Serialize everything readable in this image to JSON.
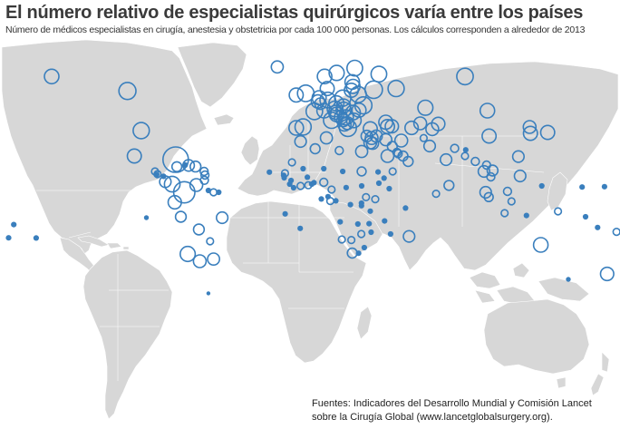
{
  "header": {
    "title": "El número relativo de especialistas quirúrgicos varía entre los países",
    "subtitle": "Número de médicos especialistas en cirugía, anestesia y obstetricia por cada 100 000 personas. Los cálculos corresponden a alrededor de 2013"
  },
  "source": {
    "line1": "Fuentes: Indicadores del Desarrollo Mundial y Comisión Lancet",
    "line2": "sobre la Cirugía Global (www.lancetglobalsurgery.org)."
  },
  "colors": {
    "land": "#d7d7d7",
    "marker": "#3a7fbd",
    "background": "#ffffff",
    "title": "#3a3a3a"
  },
  "chart_data": {
    "type": "map",
    "projection": "world",
    "marker_encoding": "circle area proportional to specialists per 100 000 people",
    "points": [
      {
        "lon": -150,
        "lat": 61,
        "value": 1.3
      },
      {
        "lon": -106,
        "lat": 55,
        "value": 1.8
      },
      {
        "lon": -98,
        "lat": 38,
        "value": 1.6
      },
      {
        "lon": -102,
        "lat": 24,
        "value": 1.2
      },
      {
        "lon": -90,
        "lat": 15.5,
        "value": 0.3
      },
      {
        "lon": -88.5,
        "lat": 14,
        "value": 0.3
      },
      {
        "lon": -89,
        "lat": 13.8,
        "value": 0.2
      },
      {
        "lon": -85,
        "lat": 12.8,
        "value": 0.2
      },
      {
        "lon": -84,
        "lat": 9.8,
        "value": 0.8
      },
      {
        "lon": -80,
        "lat": 8.5,
        "value": 1.5
      },
      {
        "lon": -78,
        "lat": 22,
        "value": 4.0
      },
      {
        "lon": -77.3,
        "lat": 18.1,
        "value": 0.6
      },
      {
        "lon": -72.5,
        "lat": 19,
        "value": 0.2
      },
      {
        "lon": -70.5,
        "lat": 18.8,
        "value": 0.8
      },
      {
        "lon": -66.5,
        "lat": 18.2,
        "value": 0.7
      },
      {
        "lon": -61.5,
        "lat": 15.5,
        "value": 0.4
      },
      {
        "lon": -61,
        "lat": 13.5,
        "value": 0.4
      },
      {
        "lon": -61.3,
        "lat": 10.6,
        "value": 0.4
      },
      {
        "lon": -66,
        "lat": 8,
        "value": 1.0
      },
      {
        "lon": -73,
        "lat": 4,
        "value": 2.8
      },
      {
        "lon": -59,
        "lat": 5,
        "value": 0.2
      },
      {
        "lon": -56,
        "lat": 4,
        "value": 0.3
      },
      {
        "lon": -53,
        "lat": 4,
        "value": 0.2
      },
      {
        "lon": -78.5,
        "lat": -1.5,
        "value": 1.1
      },
      {
        "lon": -75,
        "lat": -9.5,
        "value": 0.7
      },
      {
        "lon": -51,
        "lat": -10,
        "value": 0.8
      },
      {
        "lon": -64.5,
        "lat": -16.5,
        "value": 0.7
      },
      {
        "lon": -58,
        "lat": -23,
        "value": 0.3
      },
      {
        "lon": -71,
        "lat": -30,
        "value": 1.4
      },
      {
        "lon": -64,
        "lat": -34,
        "value": 1.0
      },
      {
        "lon": -56,
        "lat": -32.8,
        "value": 0.9
      },
      {
        "lon": -59,
        "lat": -51.7,
        "value": 0.1
      },
      {
        "lon": -19,
        "lat": 65,
        "value": 0.9
      },
      {
        "lon": 8.5,
        "lat": 61,
        "value": 1.3
      },
      {
        "lon": 15.5,
        "lat": 62.5,
        "value": 1.4
      },
      {
        "lon": 26,
        "lat": 64.5,
        "value": 1.5
      },
      {
        "lon": 24.5,
        "lat": 58.7,
        "value": 1.3
      },
      {
        "lon": 25,
        "lat": 56.9,
        "value": 1.2
      },
      {
        "lon": 24,
        "lat": 55.3,
        "value": 1.2
      },
      {
        "lon": -2.5,
        "lat": 54,
        "value": 1.7
      },
      {
        "lon": -8,
        "lat": 53.3,
        "value": 1.2
      },
      {
        "lon": 5.3,
        "lat": 52.2,
        "value": 1.2
      },
      {
        "lon": 4.6,
        "lat": 50.6,
        "value": 1.1
      },
      {
        "lon": 6.1,
        "lat": 49.7,
        "value": 0.8
      },
      {
        "lon": 2.5,
        "lat": 46.5,
        "value": 1.7
      },
      {
        "lon": 10.3,
        "lat": 51.2,
        "value": 1.5
      },
      {
        "lon": 10,
        "lat": 56,
        "value": 1.2
      },
      {
        "lon": 19,
        "lat": 52,
        "value": 1.6
      },
      {
        "lon": 15.3,
        "lat": 49.8,
        "value": 1.4
      },
      {
        "lon": 19.5,
        "lat": 48.7,
        "value": 1.2
      },
      {
        "lon": 14.5,
        "lat": 47.5,
        "value": 1.5
      },
      {
        "lon": 8.2,
        "lat": 46.8,
        "value": 1.3
      },
      {
        "lon": 19.5,
        "lat": 47.2,
        "value": 1.4
      },
      {
        "lon": 25,
        "lat": 46,
        "value": 1.3
      },
      {
        "lon": 28.5,
        "lat": 47,
        "value": 1.2
      },
      {
        "lon": 28,
        "lat": 53.5,
        "value": 1.6
      },
      {
        "lon": 31,
        "lat": 49,
        "value": 1.8
      },
      {
        "lon": 37,
        "lat": 55.5,
        "value": 1.9
      },
      {
        "lon": 40,
        "lat": 62,
        "value": 1.5
      },
      {
        "lon": 50,
        "lat": 56,
        "value": 1.6
      },
      {
        "lon": 90,
        "lat": 61,
        "value": 1.7
      },
      {
        "lon": 14.9,
        "lat": 46.1,
        "value": 1.2
      },
      {
        "lon": 15.5,
        "lat": 45.2,
        "value": 1.3
      },
      {
        "lon": 18,
        "lat": 44,
        "value": 1.1
      },
      {
        "lon": 20.8,
        "lat": 44,
        "value": 1.4
      },
      {
        "lon": 19.3,
        "lat": 42.8,
        "value": 1.0
      },
      {
        "lon": 20,
        "lat": 41.1,
        "value": 1.1
      },
      {
        "lon": 21.7,
        "lat": 41.6,
        "value": 1.0
      },
      {
        "lon": 25.5,
        "lat": 42.7,
        "value": 1.3
      },
      {
        "lon": 22,
        "lat": 39.5,
        "value": 1.8
      },
      {
        "lon": 12.5,
        "lat": 42.8,
        "value": 1.6
      },
      {
        "lon": -4,
        "lat": 40,
        "value": 1.6
      },
      {
        "lon": -8,
        "lat": 39.5,
        "value": 1.3
      },
      {
        "lon": 35,
        "lat": 39,
        "value": 1.2
      },
      {
        "lon": 33,
        "lat": 35,
        "value": 0.8
      },
      {
        "lon": 35.8,
        "lat": 33.9,
        "value": 1.0
      },
      {
        "lon": 38.5,
        "lat": 35,
        "value": 0.9
      },
      {
        "lon": 35,
        "lat": 31.5,
        "value": 1.0
      },
      {
        "lon": 36.3,
        "lat": 31,
        "value": 0.9
      },
      {
        "lon": 44,
        "lat": 42,
        "value": 1.2
      },
      {
        "lon": 45,
        "lat": 40.2,
        "value": 1.2
      },
      {
        "lon": 47.5,
        "lat": 40.3,
        "value": 1.1
      },
      {
        "lon": 67,
        "lat": 48,
        "value": 1.4
      },
      {
        "lon": 59,
        "lat": 39.5,
        "value": 1.1
      },
      {
        "lon": 64,
        "lat": 41.5,
        "value": 1.0
      },
      {
        "lon": 74.5,
        "lat": 41.3,
        "value": 1.1
      },
      {
        "lon": 71,
        "lat": 38.8,
        "value": 1.0
      },
      {
        "lon": 53,
        "lat": 32.5,
        "value": 1.0
      },
      {
        "lon": 44,
        "lat": 33,
        "value": 0.9
      },
      {
        "lon": 45,
        "lat": 24,
        "value": 1.0
      },
      {
        "lon": 47.8,
        "lat": 29.3,
        "value": 0.6
      },
      {
        "lon": 50.5,
        "lat": 26,
        "value": 0.4
      },
      {
        "lon": 51.2,
        "lat": 25.3,
        "value": 0.4
      },
      {
        "lon": 54,
        "lat": 24,
        "value": 0.6
      },
      {
        "lon": 57,
        "lat": 21,
        "value": 0.6
      },
      {
        "lon": 48,
        "lat": 15.5,
        "value": 0.3
      },
      {
        "lon": 66,
        "lat": 33.9,
        "value": 0.3
      },
      {
        "lon": 69.5,
        "lat": 29.5,
        "value": 0.8
      },
      {
        "lon": 79,
        "lat": 22,
        "value": 0.8
      },
      {
        "lon": 84,
        "lat": 28.2,
        "value": 0.4
      },
      {
        "lon": 90.4,
        "lat": 27.4,
        "value": 0.2
      },
      {
        "lon": 90,
        "lat": 24,
        "value": 0.3
      },
      {
        "lon": 80.7,
        "lat": 7.8,
        "value": 0.6
      },
      {
        "lon": 73.2,
        "lat": 3.2,
        "value": 0.3
      },
      {
        "lon": 103,
        "lat": 46.8,
        "value": 1.3
      },
      {
        "lon": 104,
        "lat": 35,
        "value": 1.2
      },
      {
        "lon": 127.5,
        "lat": 40,
        "value": 1.0
      },
      {
        "lon": 128,
        "lat": 36.5,
        "value": 1.2
      },
      {
        "lon": 138,
        "lat": 37,
        "value": 1.2
      },
      {
        "lon": 121,
        "lat": 23.7,
        "value": 0.8
      },
      {
        "lon": 96,
        "lat": 21,
        "value": 0.4
      },
      {
        "lon": 101,
        "lat": 15.5,
        "value": 0.8
      },
      {
        "lon": 102.5,
        "lat": 19,
        "value": 0.4
      },
      {
        "lon": 105,
        "lat": 12.5,
        "value": 0.4
      },
      {
        "lon": 106,
        "lat": 16,
        "value": 0.7
      },
      {
        "lon": 122,
        "lat": 13,
        "value": 0.8
      },
      {
        "lon": 102,
        "lat": 4,
        "value": 0.8
      },
      {
        "lon": 103.8,
        "lat": 1.35,
        "value": 0.5
      },
      {
        "lon": 114.7,
        "lat": 4.5,
        "value": 0.4
      },
      {
        "lon": 117,
        "lat": -1,
        "value": 0.3
      },
      {
        "lon": 113,
        "lat": -7.5,
        "value": 0.3
      },
      {
        "lon": 125.7,
        "lat": -8.8,
        "value": 0.2
      },
      {
        "lon": 144,
        "lat": -6.5,
        "value": 0.3
      },
      {
        "lon": 134.6,
        "lat": 7.5,
        "value": 0.2
      },
      {
        "lon": 158,
        "lat": 6.9,
        "value": 0.2
      },
      {
        "lon": 171,
        "lat": 7.1,
        "value": 0.2
      },
      {
        "lon": 160,
        "lat": -9.5,
        "value": 0.2
      },
      {
        "lon": 167,
        "lat": -15.4,
        "value": 0.2
      },
      {
        "lon": 178,
        "lat": -17.8,
        "value": 0.3
      },
      {
        "lon": 134,
        "lat": -25,
        "value": 1.3
      },
      {
        "lon": 172.5,
        "lat": -41,
        "value": 1.1
      },
      {
        "lon": -172,
        "lat": -13.8,
        "value": 0.2
      },
      {
        "lon": -175,
        "lat": -21.1,
        "value": 0.2
      },
      {
        "lon": -159,
        "lat": -21.2,
        "value": 0.2
      },
      {
        "lon": -5.5,
        "lat": 32,
        "value": 0.8
      },
      {
        "lon": 3,
        "lat": 28,
        "value": 0.6
      },
      {
        "lon": 9.5,
        "lat": 34,
        "value": 0.9
      },
      {
        "lon": 17,
        "lat": 27,
        "value": 0.4
      },
      {
        "lon": 30,
        "lat": 26.5,
        "value": 0.9
      },
      {
        "lon": 30,
        "lat": 15.5,
        "value": 0.5
      },
      {
        "lon": -10.5,
        "lat": 20.5,
        "value": 0.3
      },
      {
        "lon": -14.5,
        "lat": 14.5,
        "value": 0.3
      },
      {
        "lon": -15.3,
        "lat": 13.4,
        "value": 0.2
      },
      {
        "lon": -15,
        "lat": 12,
        "value": 0.2
      },
      {
        "lon": -11,
        "lat": 10.5,
        "value": 0.2
      },
      {
        "lon": -11.8,
        "lat": 8.5,
        "value": 0.2
      },
      {
        "lon": -9.5,
        "lat": 6.5,
        "value": 0.2
      },
      {
        "lon": -5.5,
        "lat": 7.5,
        "value": 0.3
      },
      {
        "lon": -4,
        "lat": 17,
        "value": 0.2
      },
      {
        "lon": -1.5,
        "lat": 12.3,
        "value": 0.2
      },
      {
        "lon": -1,
        "lat": 7.9,
        "value": 0.3
      },
      {
        "lon": 1,
        "lat": 8.5,
        "value": 0.2
      },
      {
        "lon": 2.3,
        "lat": 9.3,
        "value": 0.2
      },
      {
        "lon": 8,
        "lat": 17,
        "value": 0.2
      },
      {
        "lon": 8,
        "lat": 9.5,
        "value": 0.4
      },
      {
        "lon": 12.5,
        "lat": 5.5,
        "value": 0.3
      },
      {
        "lon": 19,
        "lat": 15.5,
        "value": 0.2
      },
      {
        "lon": 21,
        "lat": 6.6,
        "value": 0.2
      },
      {
        "lon": 30,
        "lat": 7.5,
        "value": 0.2
      },
      {
        "lon": 39.5,
        "lat": 15.2,
        "value": 0.2
      },
      {
        "lon": 40,
        "lat": 9,
        "value": 0.2
      },
      {
        "lon": 43,
        "lat": 11.8,
        "value": 0.2
      },
      {
        "lon": 46,
        "lat": 6,
        "value": 0.2
      },
      {
        "lon": 10.5,
        "lat": 1.6,
        "value": 0.2
      },
      {
        "lon": 11.8,
        "lat": -0.8,
        "value": 0.3
      },
      {
        "lon": 15,
        "lat": -0.7,
        "value": 0.2
      },
      {
        "lon": 23.5,
        "lat": -2.8,
        "value": 0.2
      },
      {
        "lon": 32.5,
        "lat": 1.3,
        "value": 0.3
      },
      {
        "lon": 37.9,
        "lat": 0.2,
        "value": 0.3
      },
      {
        "lon": 29.9,
        "lat": -2,
        "value": 0.2
      },
      {
        "lon": 29.9,
        "lat": -3.4,
        "value": 0.2
      },
      {
        "lon": 35,
        "lat": -6.4,
        "value": 0.2
      },
      {
        "lon": 17.5,
        "lat": -12.3,
        "value": 0.2
      },
      {
        "lon": 27.8,
        "lat": -13.5,
        "value": 0.2
      },
      {
        "lon": 34.3,
        "lat": -13.3,
        "value": 0.2
      },
      {
        "lon": 35.5,
        "lat": -18,
        "value": 0.2
      },
      {
        "lon": 29.8,
        "lat": -19,
        "value": 0.3
      },
      {
        "lon": 18.5,
        "lat": -22,
        "value": 0.3
      },
      {
        "lon": 24,
        "lat": -22.3,
        "value": 0.3
      },
      {
        "lon": 24.5,
        "lat": -29.5,
        "value": 0.6
      },
      {
        "lon": 31.5,
        "lat": -26.5,
        "value": 0.2
      },
      {
        "lon": 28.2,
        "lat": -29.6,
        "value": 0.2
      },
      {
        "lon": 46.8,
        "lat": -19,
        "value": 0.2
      },
      {
        "lon": 57.5,
        "lat": -20.3,
        "value": 0.8
      },
      {
        "lon": 55.5,
        "lat": -4.7,
        "value": 0.2
      },
      {
        "lon": 43.3,
        "lat": -11.8,
        "value": 0.2
      },
      {
        "lon": -23.6,
        "lat": 15.1,
        "value": 0.2
      },
      {
        "lon": 6.6,
        "lat": 0.3,
        "value": 0.2
      },
      {
        "lon": -5.7,
        "lat": -15.9,
        "value": 0.2
      },
      {
        "lon": -14.4,
        "lat": -7.9,
        "value": 0.2
      },
      {
        "lon": -95,
        "lat": -10,
        "value": 0.15
      },
      {
        "lon": 150,
        "lat": -44,
        "value": 0.15
      }
    ]
  }
}
